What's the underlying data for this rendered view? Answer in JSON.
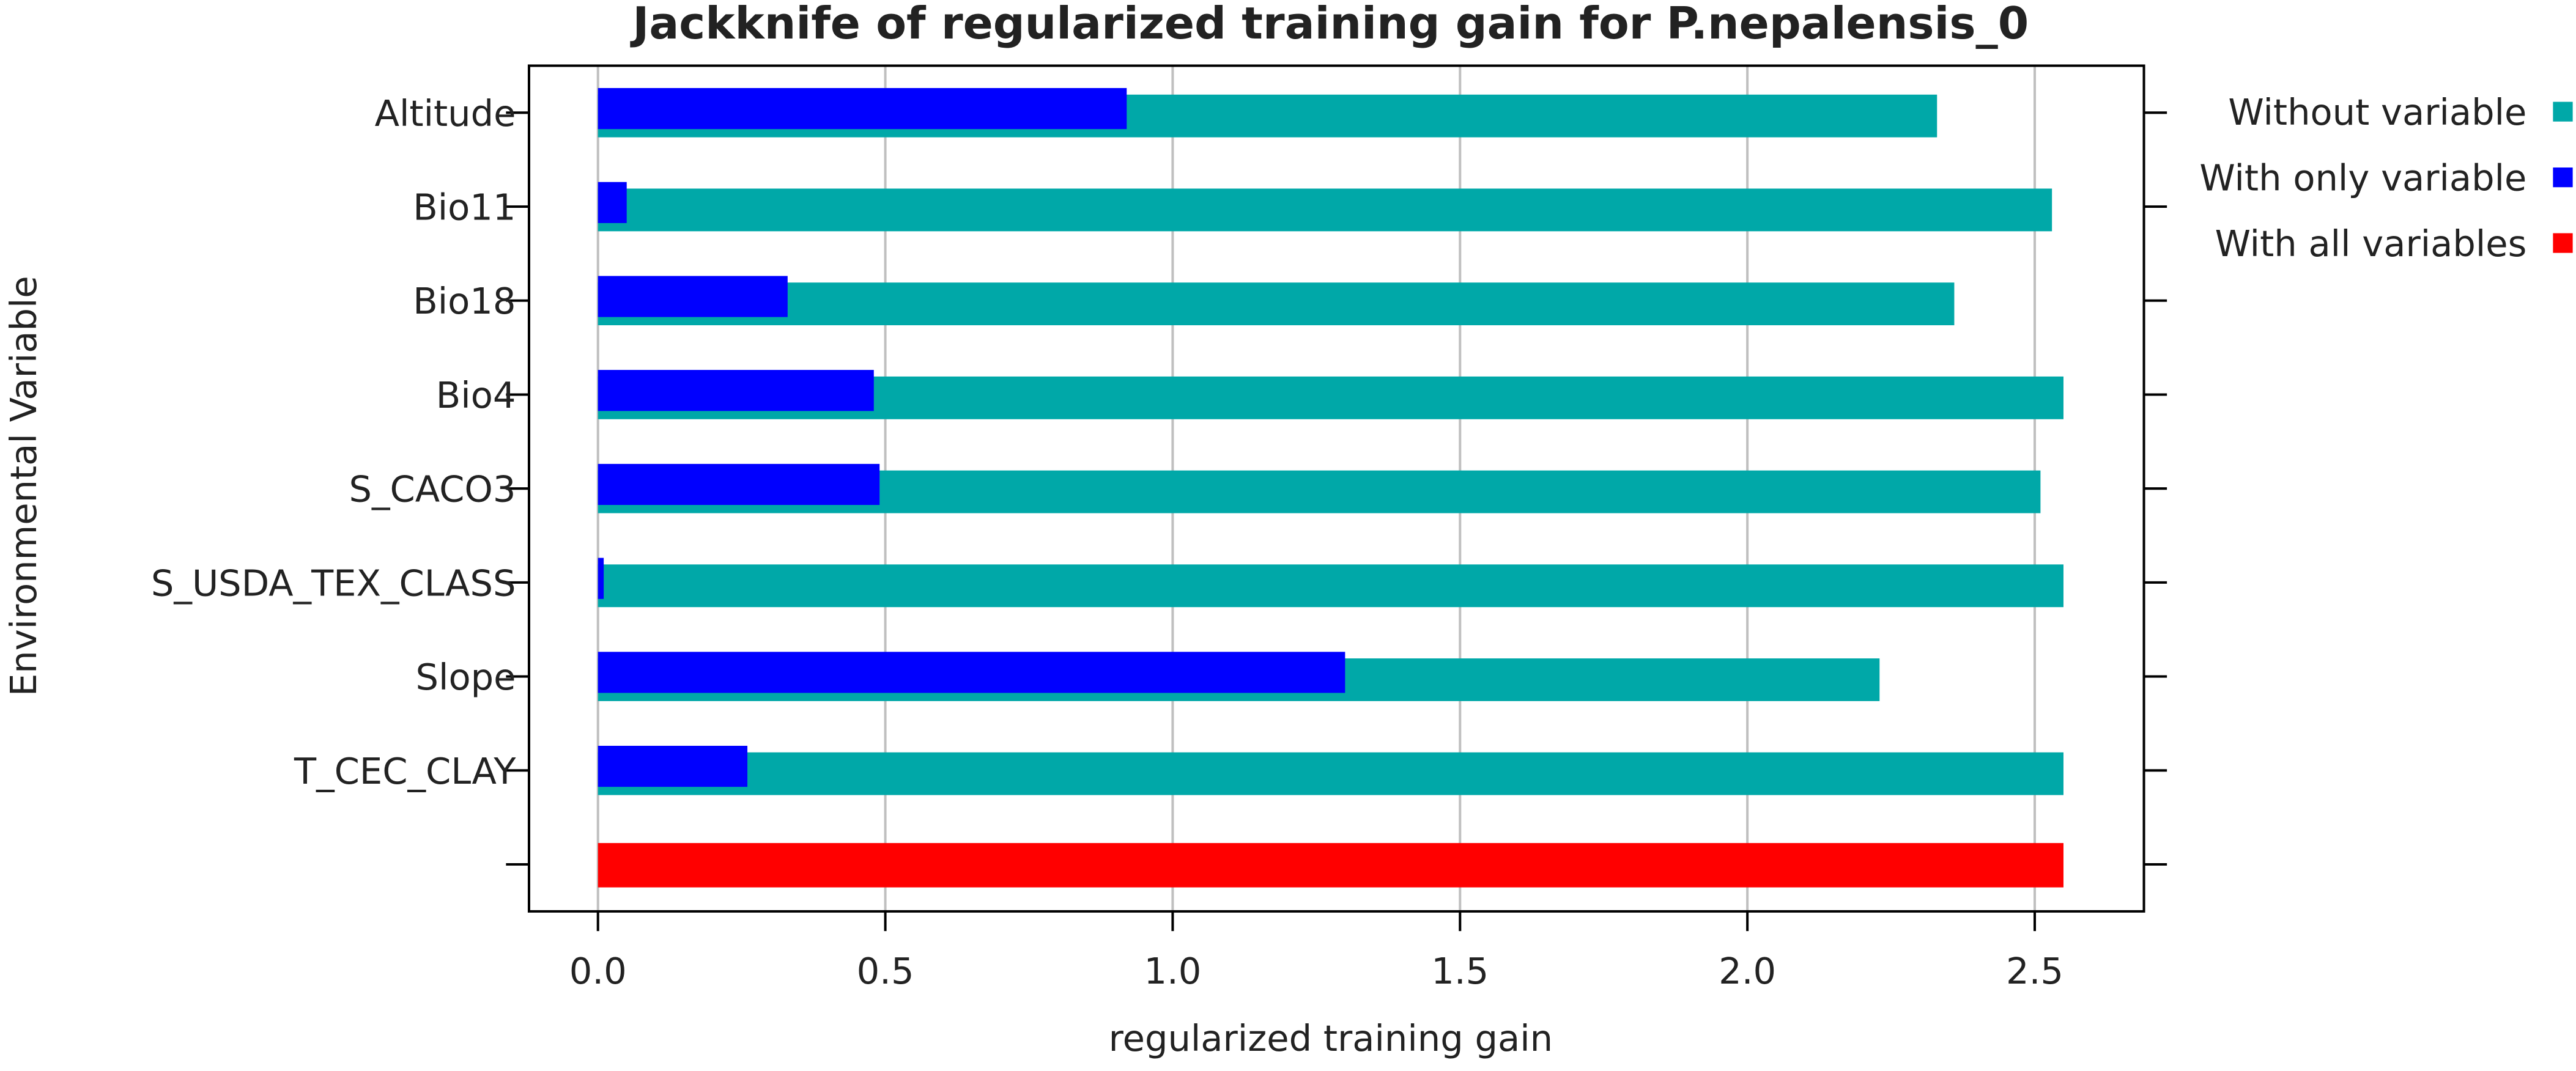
{
  "chart_data": {
    "type": "bar",
    "orientation": "horizontal",
    "title": "Jackknife of regularized training gain for P.nepalensis_0",
    "x_label": "regularized training gain",
    "y_label": "Environmental Variable",
    "categories": [
      "Altitude",
      "Bio11",
      "Bio18",
      "Bio4",
      "S_CACO3",
      "S_USDA_TEX_CLASS",
      "Slope",
      "T_CEC_CLAY",
      null
    ],
    "series": [
      {
        "name": "Without variable",
        "color": "#00a8a8",
        "values": [
          2.33,
          2.53,
          2.36,
          2.55,
          2.51,
          2.55,
          2.23,
          2.55,
          null
        ]
      },
      {
        "name": "With only variable",
        "color": "#0000ff",
        "values": [
          0.92,
          0.05,
          0.33,
          0.48,
          0.49,
          0.01,
          1.3,
          0.26,
          null
        ]
      },
      {
        "name": "With all variables",
        "color": "#ff0000",
        "values": [
          null,
          null,
          null,
          null,
          null,
          null,
          null,
          null,
          2.55
        ]
      }
    ],
    "xlim": [
      -0.12,
      2.69
    ],
    "xticks": [
      {
        "value": 0,
        "label": "0.0"
      },
      0.5,
      {
        "value": 1,
        "label": "1.0"
      },
      1.5,
      {
        "value": 2,
        "label": "2.0"
      },
      2.5
    ],
    "grid": true,
    "legend": "right"
  }
}
